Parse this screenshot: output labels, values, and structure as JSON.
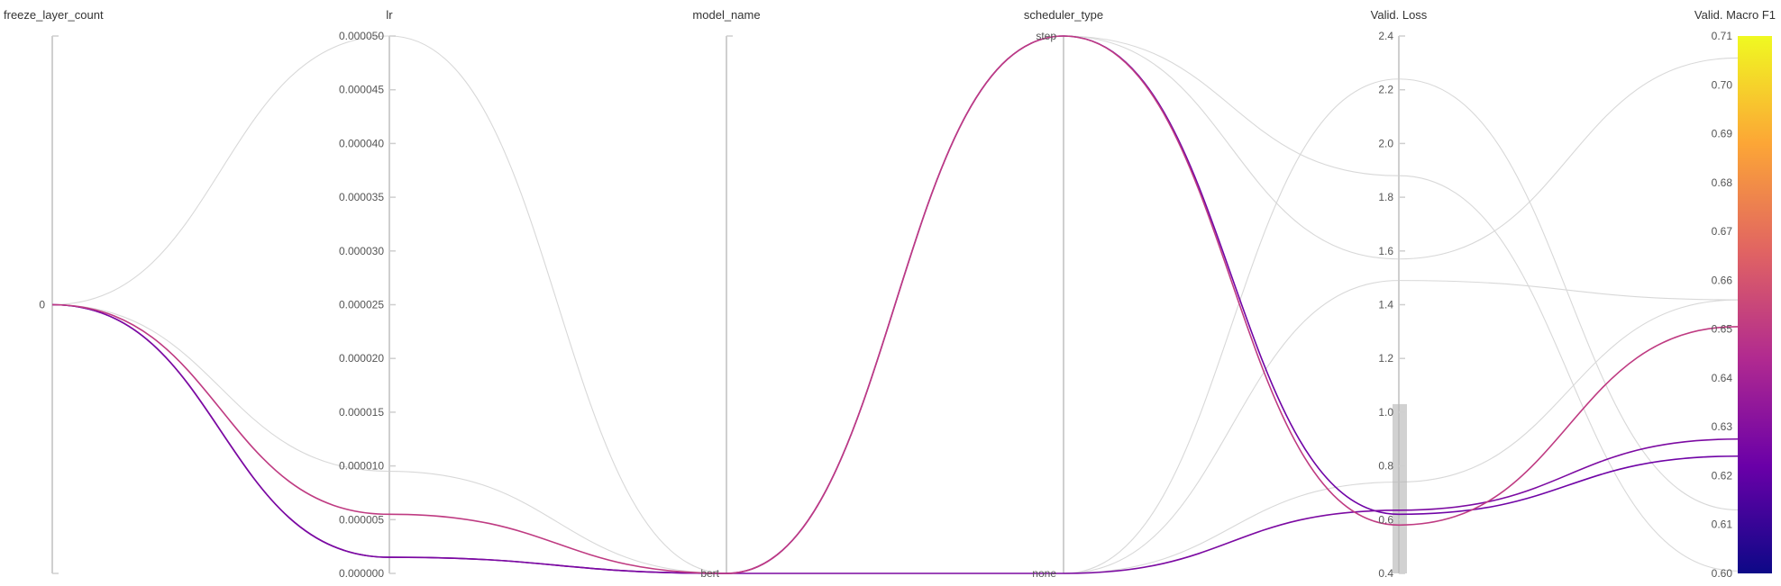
{
  "chart_data": {
    "type": "parallel_coordinates",
    "axes": [
      {
        "key": "freeze_layer_count",
        "label": "freeze_layer_count",
        "kind": "categorical",
        "categories": [
          "0"
        ]
      },
      {
        "key": "lr",
        "label": "lr",
        "kind": "numeric",
        "range": [
          0,
          5e-05
        ],
        "ticks": [
          "0.000000",
          "0.000005",
          "0.000010",
          "0.000015",
          "0.000020",
          "0.000025",
          "0.000030",
          "0.000035",
          "0.000040",
          "0.000045",
          "0.000050"
        ]
      },
      {
        "key": "model_name",
        "label": "model_name",
        "kind": "categorical",
        "categories": [
          "bert"
        ]
      },
      {
        "key": "scheduler_type",
        "label": "scheduler_type",
        "kind": "categorical",
        "categories": [
          "none",
          "step"
        ]
      },
      {
        "key": "valid_loss",
        "label": "Valid. Loss",
        "kind": "numeric",
        "range": [
          0.4,
          2.4
        ],
        "ticks": [
          "0.4",
          "0.6",
          "0.8",
          "1.0",
          "1.2",
          "1.4",
          "1.6",
          "1.8",
          "2.0",
          "2.2",
          "2.4"
        ],
        "brush": [
          0.4,
          1.03
        ]
      },
      {
        "key": "valid_macro_f1",
        "label": "Valid. Macro F1",
        "kind": "numeric",
        "range": [
          0.6,
          0.71
        ],
        "ticks": [
          "0.60",
          "0.61",
          "0.62",
          "0.63",
          "0.64",
          "0.65",
          "0.66",
          "0.67",
          "0.68",
          "0.69",
          "0.70",
          "0.71"
        ],
        "colorbar": true
      }
    ],
    "colorscale": [
      "#0d0887",
      "#6a00a8",
      "#b12a90",
      "#e16462",
      "#fca636",
      "#f0f921"
    ],
    "runs": [
      {
        "freeze_layer_count": "0",
        "lr": 1.5e-06,
        "model_name": "bert",
        "scheduler_type": "step",
        "valid_loss": 0.62,
        "valid_macro_f1": 0.624,
        "highlighted": true
      },
      {
        "freeze_layer_count": "0",
        "lr": 1.5e-06,
        "model_name": "bert",
        "scheduler_type": "none",
        "valid_loss": 0.635,
        "valid_macro_f1": 0.6275,
        "highlighted": true
      },
      {
        "freeze_layer_count": "0",
        "lr": 5.5e-06,
        "model_name": "bert",
        "scheduler_type": "step",
        "valid_loss": 0.58,
        "valid_macro_f1": 0.6505,
        "highlighted": true
      },
      {
        "freeze_layer_count": "0",
        "lr": 5e-05,
        "model_name": "bert",
        "scheduler_type": "step",
        "valid_loss": 1.57,
        "valid_macro_f1": 0.7055,
        "highlighted": false
      },
      {
        "freeze_layer_count": "0",
        "lr": 9.5e-06,
        "model_name": "bert",
        "scheduler_type": "step",
        "valid_loss": 1.88,
        "valid_macro_f1": 0.6005,
        "highlighted": false
      },
      {
        "freeze_layer_count": "0",
        "lr": 1.5e-06,
        "model_name": "bert",
        "scheduler_type": "none",
        "valid_loss": 2.24,
        "valid_macro_f1": 0.613,
        "highlighted": false
      },
      {
        "freeze_layer_count": "0",
        "lr": 1.5e-06,
        "model_name": "bert",
        "scheduler_type": "none",
        "valid_loss": 1.49,
        "valid_macro_f1": 0.656,
        "highlighted": false
      },
      {
        "freeze_layer_count": "0",
        "lr": 1.5e-06,
        "model_name": "bert",
        "scheduler_type": "none",
        "valid_loss": 0.74,
        "valid_macro_f1": 0.656,
        "highlighted": false
      }
    ]
  }
}
